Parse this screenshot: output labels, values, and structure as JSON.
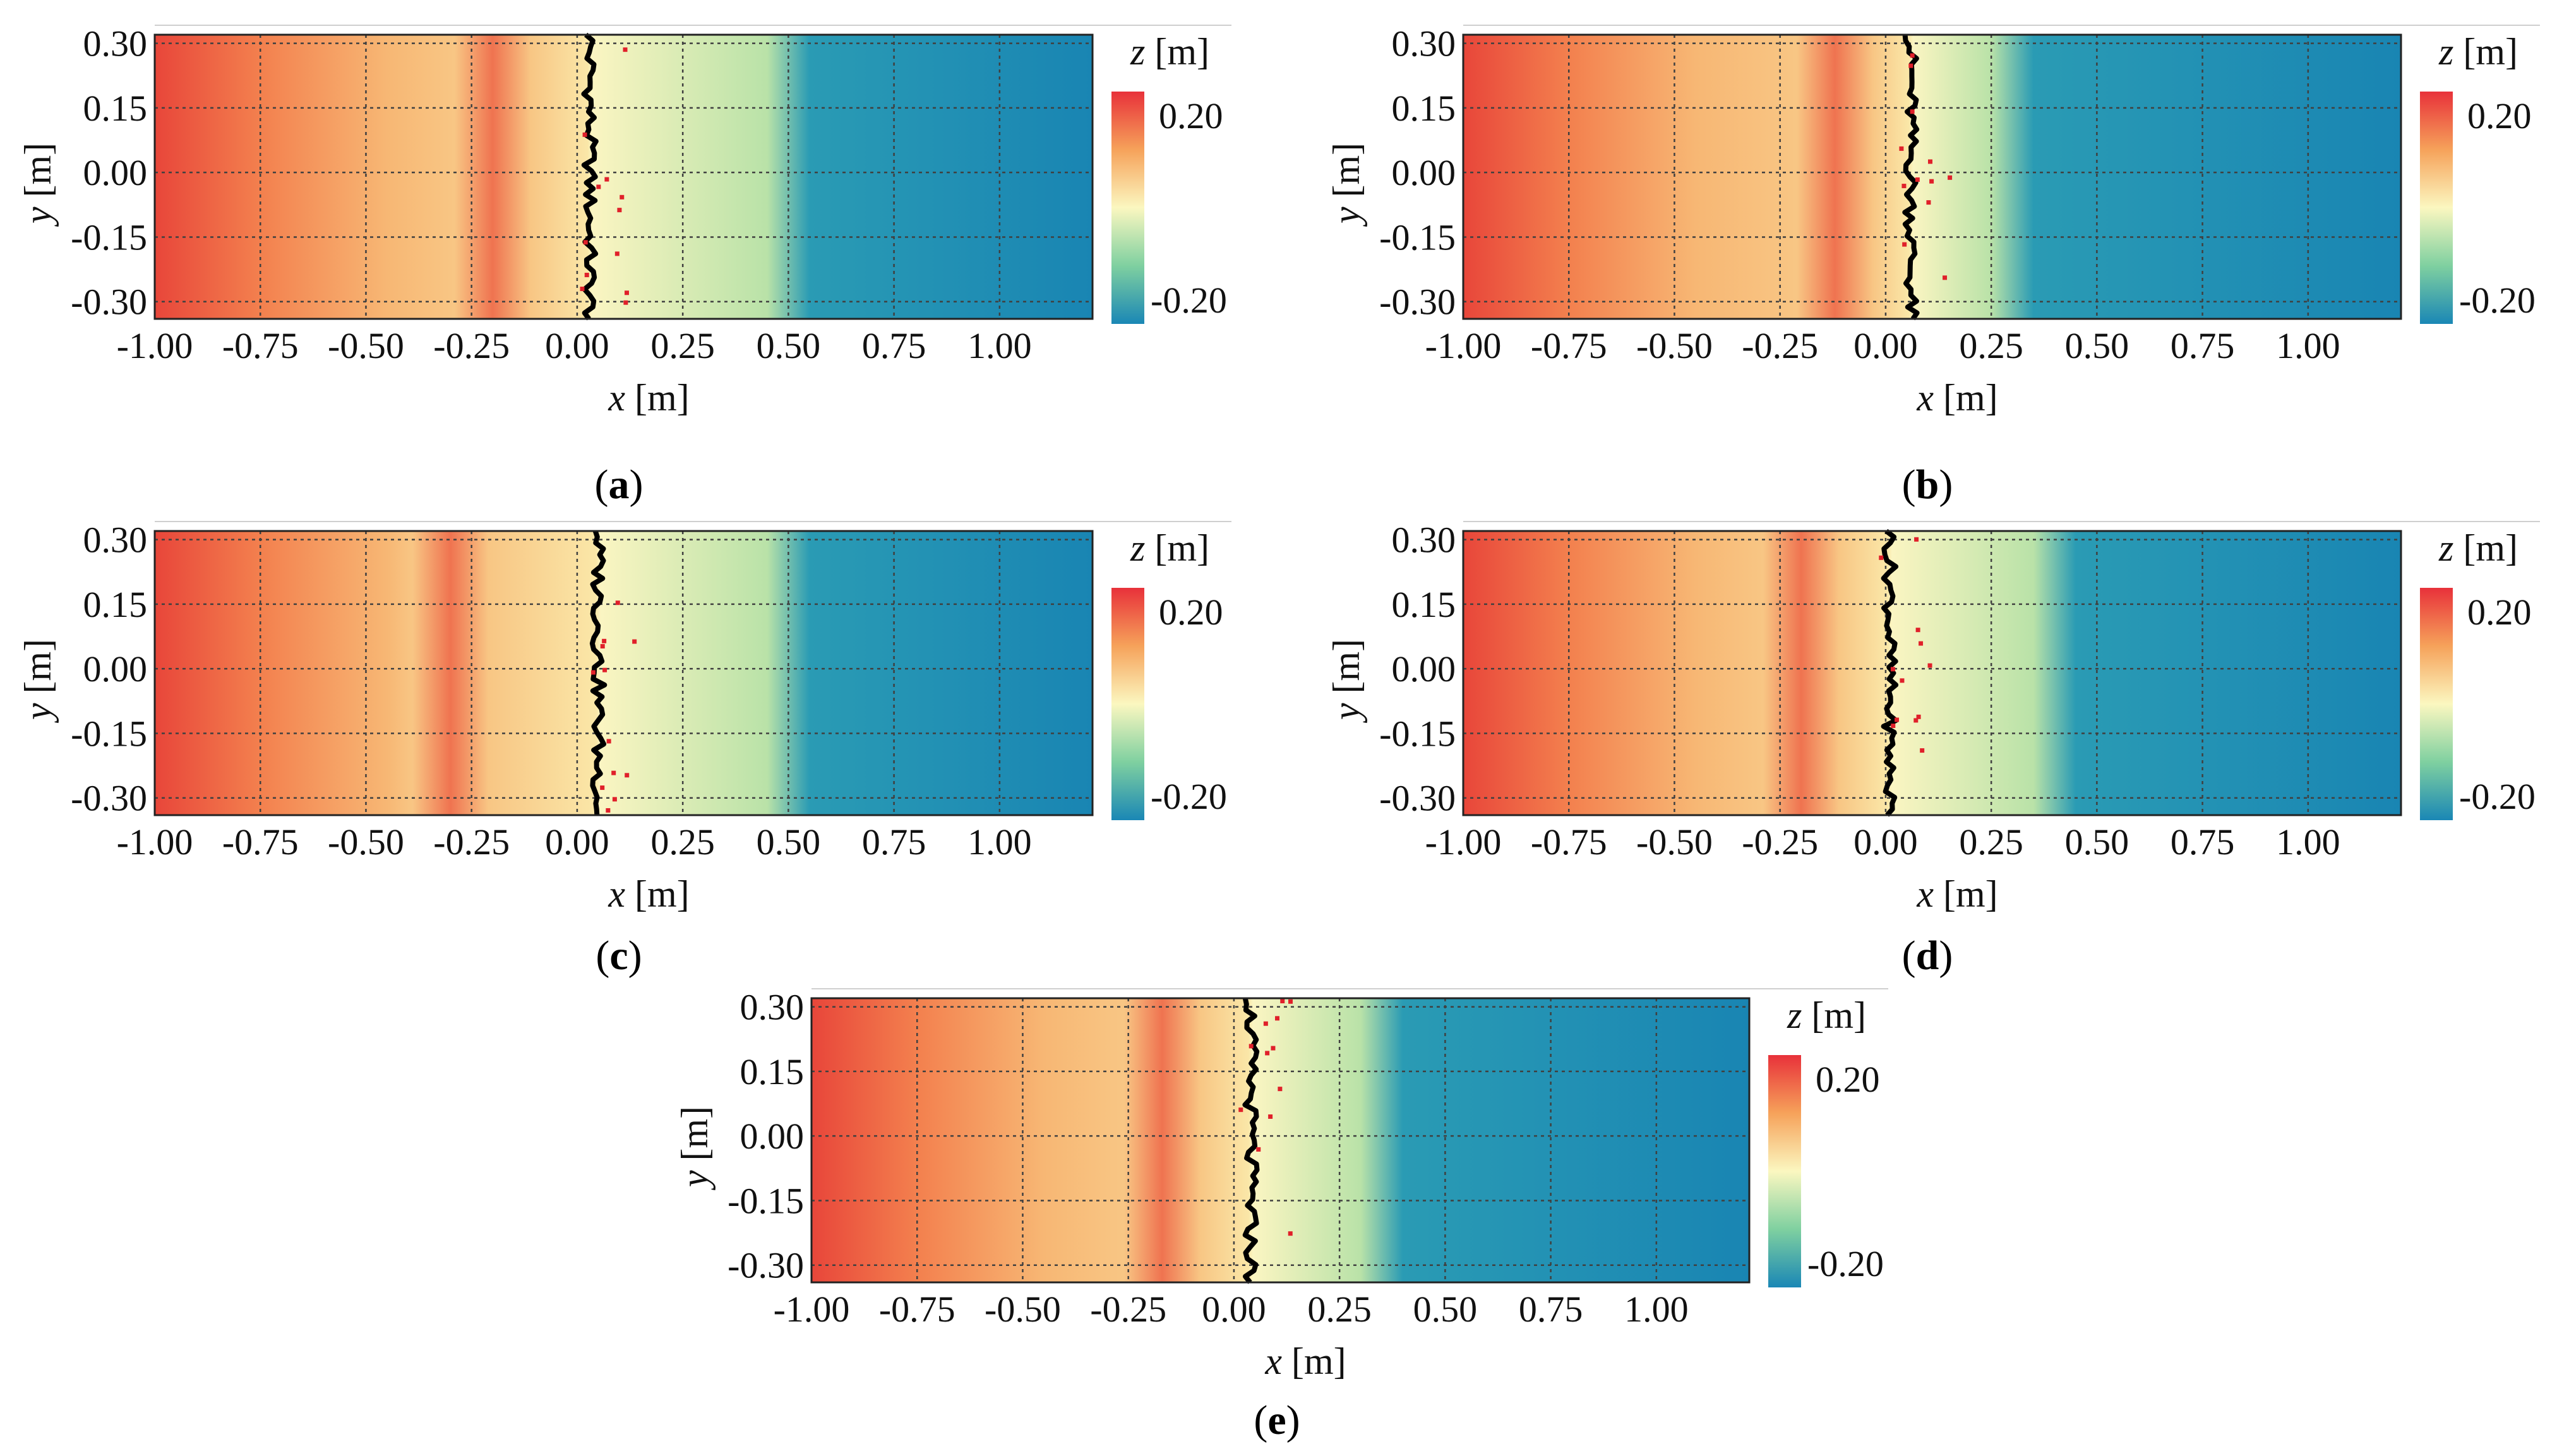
{
  "figure": {
    "colorbar_label_var": "z",
    "colorbar_label_unit": "[m]",
    "colorbar_max_label": "0.20",
    "colorbar_min_label": "-0.20",
    "xlabel_var": "x",
    "xlabel_unit": "[m]",
    "ylabel_var": "y",
    "ylabel_unit": "[m]",
    "colors": {
      "red": "#e8463a",
      "orange": "#f5a45a",
      "light": "#fbf5c2",
      "green": "#7fcfa0",
      "teal": "#2a9bb4",
      "blue": "#1985b3",
      "line": "#000000",
      "grid": "#404040"
    }
  },
  "chart_data": [
    {
      "id": "a",
      "type": "heatmap",
      "caption": "a",
      "x_range": [
        -1.0,
        1.22
      ],
      "y_range": [
        -0.34,
        0.32
      ],
      "x_ticks": [
        "-1.00",
        "-0.75",
        "-0.50",
        "-0.25",
        "0.00",
        "0.25",
        "0.50",
        "0.75",
        "1.00"
      ],
      "y_ticks": [
        "0.30",
        "0.15",
        "0.00",
        "-0.15",
        "-0.30"
      ],
      "z_range": [
        -0.2,
        0.2
      ],
      "shoreline_x": 0.03,
      "ridge_x": -0.2,
      "drop_start_x": 0.5
    },
    {
      "id": "b",
      "type": "heatmap",
      "caption": "b",
      "x_range": [
        -1.0,
        1.22
      ],
      "y_range": [
        -0.34,
        0.32
      ],
      "x_ticks": [
        "-1.00",
        "-0.75",
        "-0.50",
        "-0.25",
        "0.00",
        "0.25",
        "0.50",
        "0.75",
        "1.00"
      ],
      "y_ticks": [
        "0.30",
        "0.15",
        "0.00",
        "-0.15",
        "-0.30"
      ],
      "z_range": [
        -0.2,
        0.2
      ],
      "shoreline_x": 0.06,
      "ridge_x": -0.12,
      "drop_start_x": 0.3
    },
    {
      "id": "c",
      "type": "heatmap",
      "caption": "c",
      "x_range": [
        -1.0,
        1.22
      ],
      "y_range": [
        -0.34,
        0.32
      ],
      "x_ticks": [
        "-1.00",
        "-0.75",
        "-0.50",
        "-0.25",
        "0.00",
        "0.25",
        "0.50",
        "0.75",
        "1.00"
      ],
      "y_ticks": [
        "0.30",
        "0.15",
        "0.00",
        "-0.15",
        "-0.30"
      ],
      "z_range": [
        -0.2,
        0.2
      ],
      "shoreline_x": 0.05,
      "ridge_x": -0.3,
      "drop_start_x": 0.5
    },
    {
      "id": "d",
      "type": "heatmap",
      "caption": "d",
      "x_range": [
        -1.0,
        1.22
      ],
      "y_range": [
        -0.34,
        0.32
      ],
      "x_ticks": [
        "-1.00",
        "-0.75",
        "-0.50",
        "-0.25",
        "0.00",
        "0.25",
        "0.50",
        "0.75",
        "1.00"
      ],
      "y_ticks": [
        "0.30",
        "0.15",
        "0.00",
        "-0.15",
        "-0.30"
      ],
      "z_range": [
        -0.2,
        0.2
      ],
      "shoreline_x": 0.01,
      "ridge_x": -0.2,
      "drop_start_x": 0.4
    },
    {
      "id": "e",
      "type": "heatmap",
      "caption": "e",
      "x_range": [
        -1.0,
        1.22
      ],
      "y_range": [
        -0.34,
        0.32
      ],
      "x_ticks": [
        "-1.00",
        "-0.75",
        "-0.50",
        "-0.25",
        "0.00",
        "0.25",
        "0.50",
        "0.75",
        "1.00"
      ],
      "y_ticks": [
        "0.30",
        "0.15",
        "0.00",
        "-0.15",
        "-0.30"
      ],
      "z_range": [
        -0.2,
        0.2
      ],
      "shoreline_x": 0.04,
      "ridge_x": -0.17,
      "drop_start_x": 0.35
    }
  ]
}
